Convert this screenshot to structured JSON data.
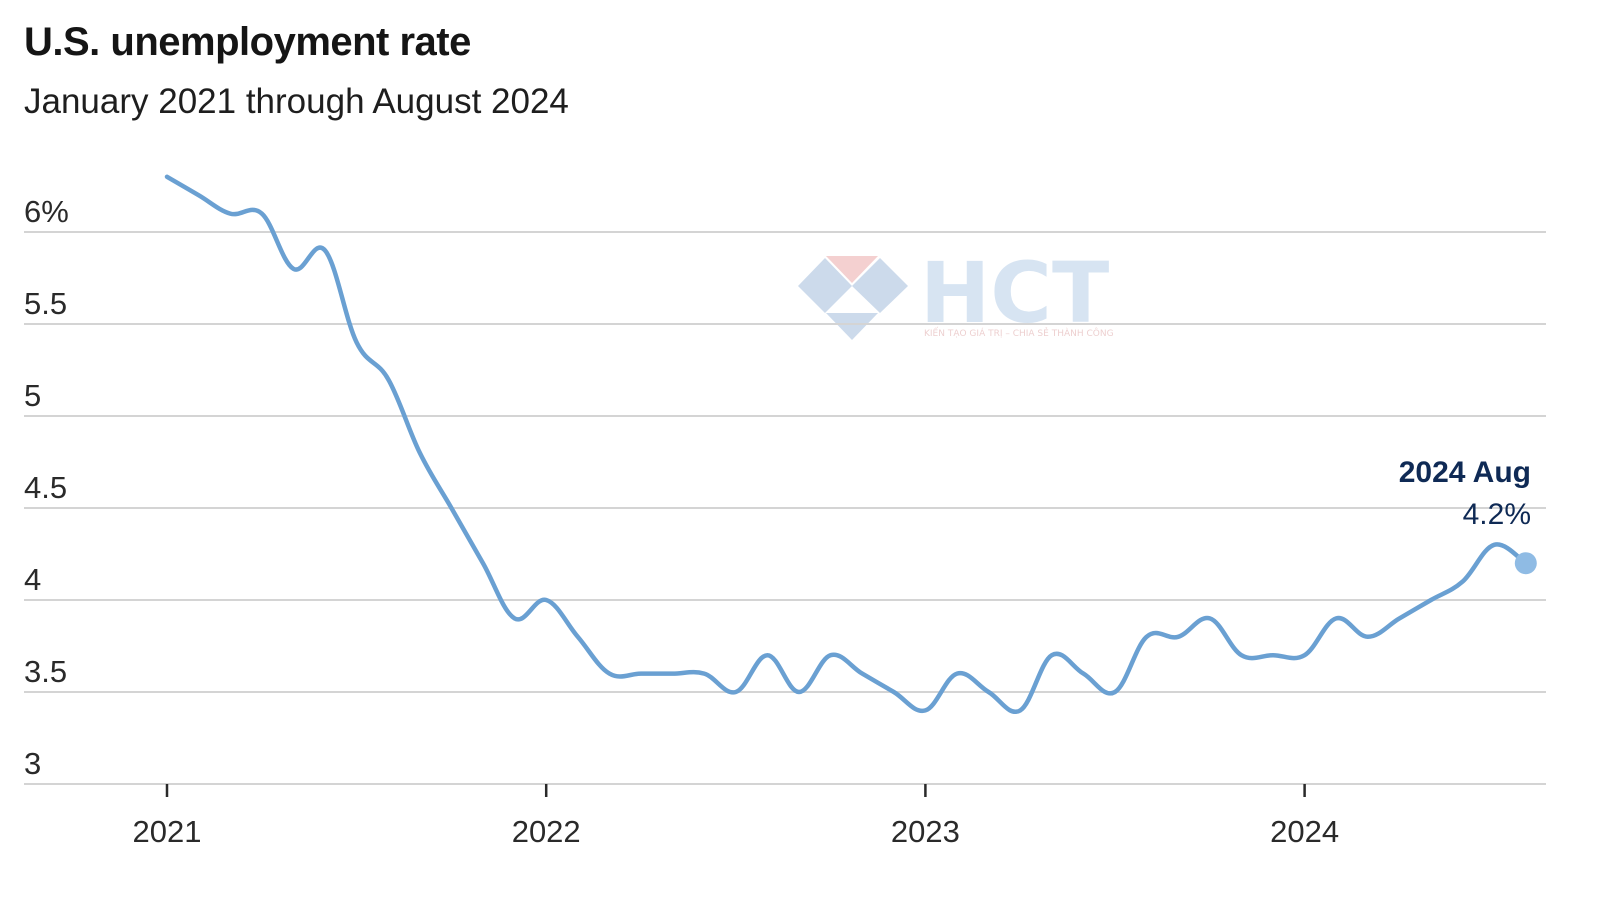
{
  "title": "U.S. unemployment rate",
  "subtitle": "January 2021 through August 2024",
  "watermark": {
    "brand": "HCT",
    "tagline": "KIẾN TẠO GIÁ TRỊ – CHIA SẺ THÀNH CÔNG"
  },
  "colors": {
    "line": "#6aa0d2",
    "grid": "#d4d4d4",
    "annotation": "#0f2a55",
    "text": "#1a1a1a"
  },
  "chart_data": {
    "type": "line",
    "title": "U.S. unemployment rate",
    "subtitle": "January 2021 through August 2024",
    "xlabel": "",
    "ylabel": "",
    "x_start": "2021-01",
    "x_end": "2024-08",
    "xticks": [
      "2021",
      "2022",
      "2023",
      "2024"
    ],
    "yticks": [
      {
        "value": 3,
        "label": "3"
      },
      {
        "value": 3.5,
        "label": "3.5"
      },
      {
        "value": 4,
        "label": "4"
      },
      {
        "value": 4.5,
        "label": "4.5"
      },
      {
        "value": 5,
        "label": "5"
      },
      {
        "value": 5.5,
        "label": "5.5"
      },
      {
        "value": 6,
        "label": "6%"
      }
    ],
    "ylim": [
      3,
      6.25
    ],
    "grid": true,
    "series": [
      {
        "name": "",
        "values": [
          6.3,
          6.2,
          6.1,
          6.1,
          5.8,
          5.9,
          5.4,
          5.2,
          4.8,
          4.5,
          4.2,
          3.9,
          4.0,
          3.8,
          3.6,
          3.6,
          3.6,
          3.6,
          3.5,
          3.7,
          3.5,
          3.7,
          3.6,
          3.5,
          3.4,
          3.6,
          3.5,
          3.4,
          3.7,
          3.6,
          3.5,
          3.8,
          3.8,
          3.9,
          3.7,
          3.7,
          3.7,
          3.9,
          3.8,
          3.9,
          4.0,
          4.1,
          4.3,
          4.2
        ]
      }
    ],
    "annotation": {
      "label": "2024 Aug",
      "value_label": "4.2%"
    }
  }
}
